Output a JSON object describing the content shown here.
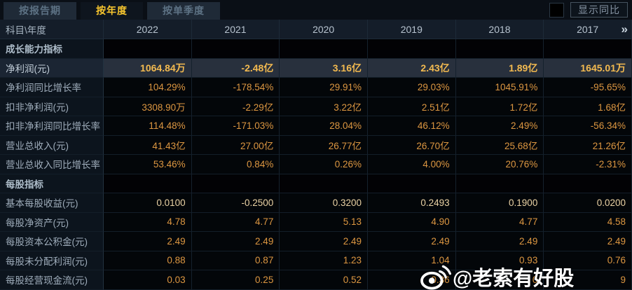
{
  "tabs": [
    {
      "label": "按报告期",
      "active": false
    },
    {
      "label": "按年度",
      "active": true
    },
    {
      "label": "按单季度",
      "active": false
    }
  ],
  "controls": {
    "show_yoy_label": "显示同比",
    "checkbox_checked": false
  },
  "table": {
    "corner_header": "科目\\年度",
    "year_headers": [
      "2022",
      "2021",
      "2020",
      "2019",
      "2018",
      "2017"
    ],
    "more_icon": "»",
    "rows": [
      {
        "type": "section",
        "label": "成长能力指标",
        "values": [
          "",
          "",
          "",
          "",
          "",
          ""
        ]
      },
      {
        "type": "data",
        "highlight": true,
        "label": "净利润(元)",
        "values": [
          "1064.84万",
          "-2.48亿",
          "3.16亿",
          "2.43亿",
          "1.89亿",
          "1645.01万"
        ]
      },
      {
        "type": "data",
        "label": "净利润同比增长率",
        "values": [
          "104.29%",
          "-178.54%",
          "29.91%",
          "29.03%",
          "1045.91%",
          "-95.65%"
        ]
      },
      {
        "type": "data",
        "label": "扣非净利润(元)",
        "values": [
          "3308.90万",
          "-2.29亿",
          "3.22亿",
          "2.51亿",
          "1.72亿",
          "1.68亿"
        ]
      },
      {
        "type": "data",
        "label": "扣非净利润同比增长率",
        "values": [
          "114.48%",
          "-171.03%",
          "28.04%",
          "46.12%",
          "2.49%",
          "-56.34%"
        ]
      },
      {
        "type": "data",
        "label": "营业总收入(元)",
        "values": [
          "41.43亿",
          "27.00亿",
          "26.77亿",
          "26.70亿",
          "25.68亿",
          "21.26亿"
        ]
      },
      {
        "type": "data",
        "label": "营业总收入同比增长率",
        "values": [
          "53.46%",
          "0.84%",
          "0.26%",
          "4.00%",
          "20.76%",
          "-2.31%"
        ]
      },
      {
        "type": "section",
        "label": "每股指标",
        "values": [
          "",
          "",
          "",
          "",
          "",
          ""
        ]
      },
      {
        "type": "data",
        "pale": true,
        "label": "基本每股收益(元)",
        "values": [
          "0.0100",
          "-0.2500",
          "0.3200",
          "0.2493",
          "0.1900",
          "0.0200"
        ]
      },
      {
        "type": "data",
        "label": "每股净资产(元)",
        "values": [
          "4.78",
          "4.77",
          "5.13",
          "4.90",
          "4.77",
          "4.58"
        ]
      },
      {
        "type": "data",
        "label": "每股资本公积金(元)",
        "values": [
          "2.49",
          "2.49",
          "2.49",
          "2.49",
          "2.49",
          "2.49"
        ]
      },
      {
        "type": "data",
        "label": "每股未分配利润(元)",
        "values": [
          "0.88",
          "0.87",
          "1.23",
          "1.04",
          "0.93",
          "0.76"
        ]
      },
      {
        "type": "data",
        "label": "每股经营现金流(元)",
        "values": [
          "0.03",
          "0.25",
          "0.52",
          "0.36",
          "0",
          "9"
        ]
      }
    ]
  },
  "watermark": {
    "text": "@老索有好股",
    "icon": "weibo-icon"
  },
  "colors": {
    "value_gold": "#dd9741",
    "highlight_gold": "#f3ba50",
    "active_tab_gold": "#f8c62e",
    "pale_value": "#ead2a4",
    "highlight_row_bg": "#28303d",
    "header_bg": "#141d29",
    "label_col_bg": "#0c141d"
  }
}
